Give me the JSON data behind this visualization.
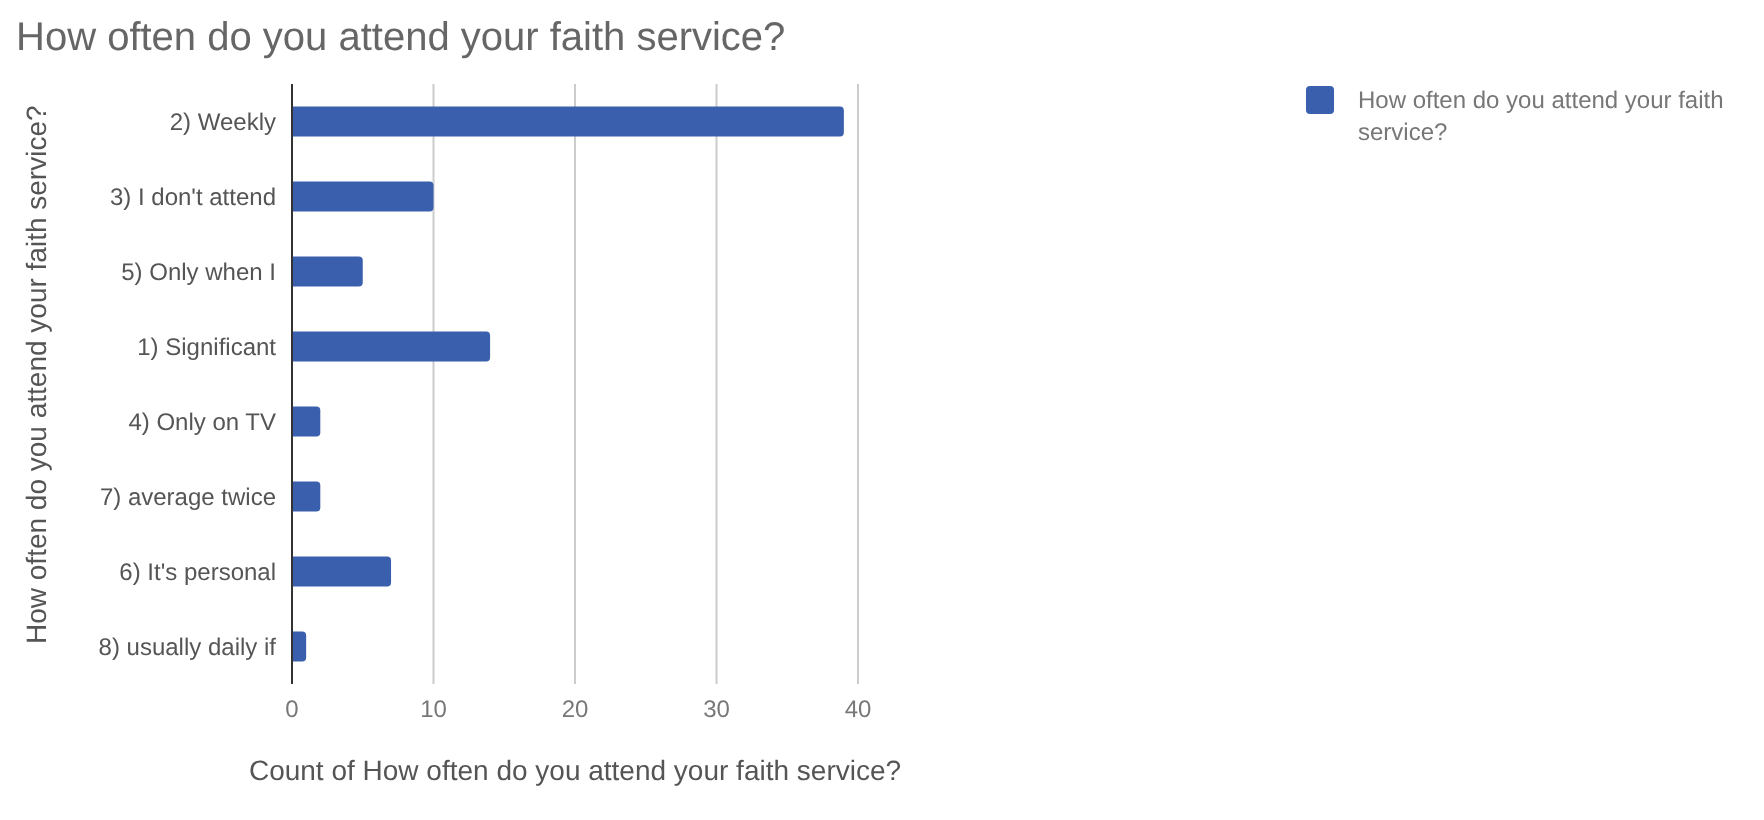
{
  "chart_data": {
    "type": "bar",
    "orientation": "horizontal",
    "title": "How often do you attend your faith service?",
    "xlabel": "Count of How often do you attend your faith service?",
    "ylabel": "How often do you attend your faith service?",
    "categories": [
      "2) Weekly",
      "3) I don't attend",
      "5) Only when I",
      "1) Significant",
      "4) Only on TV",
      "7) average twice",
      "6) It's personal",
      "8) usually daily if"
    ],
    "series": [
      {
        "name": "How often do you attend your faith service?",
        "color": "#3a5fad",
        "values": [
          39,
          10,
          5,
          14,
          2,
          2,
          7,
          1
        ]
      }
    ],
    "xlim": [
      0,
      40
    ],
    "xticks": [
      0,
      10,
      20,
      30,
      40
    ],
    "grid": "x",
    "legend": "top right"
  }
}
